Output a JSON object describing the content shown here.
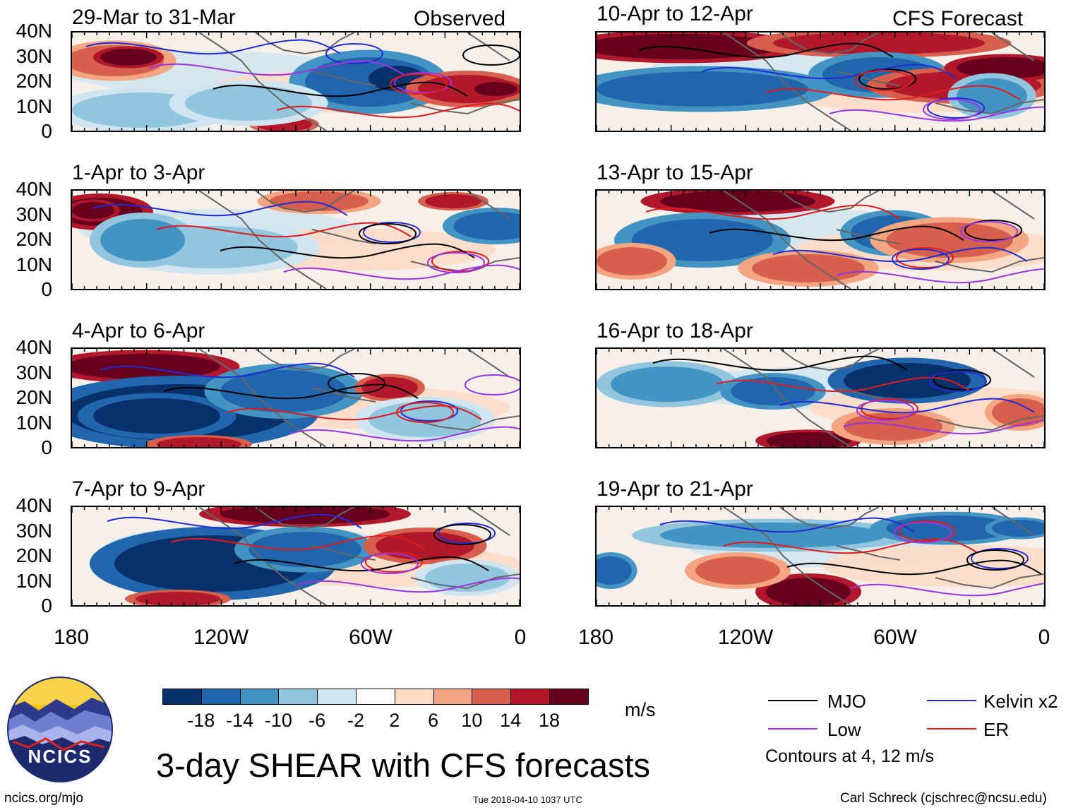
{
  "header": {
    "observed_label": "Observed",
    "forecast_label": "CFS Forecast"
  },
  "panels_left": [
    {
      "title": "29-Mar to 31-Mar"
    },
    {
      "title": "1-Apr to 3-Apr"
    },
    {
      "title": "4-Apr to 6-Apr"
    },
    {
      "title": "7-Apr to 9-Apr"
    }
  ],
  "panels_right": [
    {
      "title": "10-Apr to 12-Apr"
    },
    {
      "title": "13-Apr to 15-Apr"
    },
    {
      "title": "16-Apr to 18-Apr"
    },
    {
      "title": "19-Apr to 21-Apr"
    }
  ],
  "lat_ticks": [
    "40N",
    "30N",
    "20N",
    "10N",
    "0"
  ],
  "lon_ticks": [
    "180",
    "120W",
    "60W",
    "0"
  ],
  "colorbar": {
    "colors": [
      "#08306b",
      "#2166ac",
      "#4393c3",
      "#92c5de",
      "#d1e5f0",
      "#ffffff",
      "#fddbc7",
      "#f4a582",
      "#d6604d",
      "#b2182b",
      "#67001f"
    ],
    "labels": [
      "-18",
      "-14",
      "-10",
      "-6",
      "-2",
      "2",
      "6",
      "10",
      "14",
      "18"
    ],
    "units": "m/s"
  },
  "legend": {
    "items": [
      {
        "label": "MJO",
        "color": "#000000"
      },
      {
        "label": "Kelvin x2",
        "color": "#1f2bd6"
      },
      {
        "label": "Low",
        "color": "#9a35e0"
      },
      {
        "label": "ER",
        "color": "#e01b1b"
      }
    ],
    "note": "Contours at 4, 12 m/s"
  },
  "title": "3-day SHEAR with CFS forecasts",
  "logo_text": "NCICS",
  "footer": {
    "url": "ncics.org/mjo",
    "timestamp": "Tue 2018-04-10 1037 UTC",
    "credit": "Carl Schreck (cjschrec@ncsu.edu)"
  }
}
